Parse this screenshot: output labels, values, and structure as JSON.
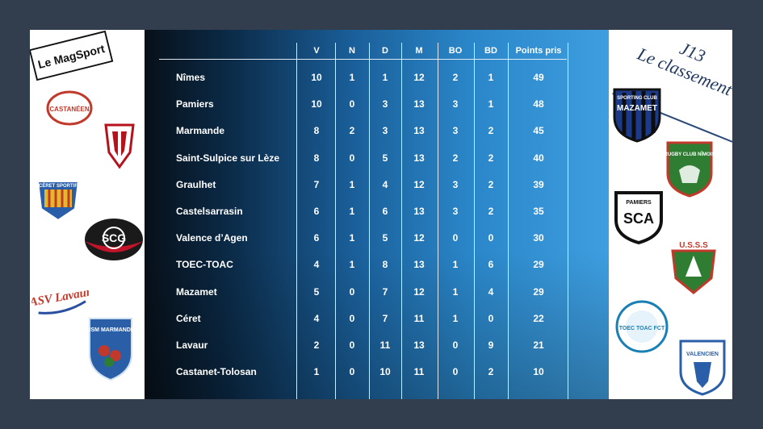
{
  "brand": {
    "logo_text": "Le MagSport"
  },
  "heading": {
    "line1": "J13",
    "line2": "Le classement"
  },
  "columns": [
    "V",
    "N",
    "D",
    "M",
    "BO",
    "BD",
    "Points pris"
  ],
  "rows": [
    {
      "team": "Nîmes",
      "V": "10",
      "N": "1",
      "D": "1",
      "M": "12",
      "BO": "2",
      "BD": "1",
      "P": "49"
    },
    {
      "team": "Pamiers",
      "V": "10",
      "N": "0",
      "D": "3",
      "M": "13",
      "BO": "3",
      "BD": "1",
      "P": "48"
    },
    {
      "team": "Marmande",
      "V": "8",
      "N": "2",
      "D": "3",
      "M": "13",
      "BO": "3",
      "BD": "2",
      "P": "45"
    },
    {
      "team": "Saint-Sulpice sur Lèze",
      "V": "8",
      "N": "0",
      "D": "5",
      "M": "13",
      "BO": "2",
      "BD": "2",
      "P": "40"
    },
    {
      "team": "Graulhet",
      "V": "7",
      "N": "1",
      "D": "4",
      "M": "12",
      "BO": "3",
      "BD": "2",
      "P": "39"
    },
    {
      "team": "Castelsarrasin",
      "V": "6",
      "N": "1",
      "D": "6",
      "M": "13",
      "BO": "3",
      "BD": "2",
      "P": "35"
    },
    {
      "team": "Valence d’Agen",
      "V": "6",
      "N": "1",
      "D": "5",
      "M": "12",
      "BO": "0",
      "BD": "0",
      "P": "30"
    },
    {
      "team": "TOEC-TOAC",
      "V": "4",
      "N": "1",
      "D": "8",
      "M": "13",
      "BO": "1",
      "BD": "6",
      "P": "29"
    },
    {
      "team": "Mazamet",
      "V": "5",
      "N": "0",
      "D": "7",
      "M": "12",
      "BO": "1",
      "BD": "4",
      "P": "29"
    },
    {
      "team": "Céret",
      "V": "4",
      "N": "0",
      "D": "7",
      "M": "11",
      "BO": "1",
      "BD": "0",
      "P": "22"
    },
    {
      "team": "Lavaur",
      "V": "2",
      "N": "0",
      "D": "11",
      "M": "13",
      "BO": "0",
      "BD": "9",
      "P": "21"
    },
    {
      "team": "Castanet-Tolosan",
      "V": "1",
      "N": "0",
      "D": "10",
      "M": "11",
      "BO": "0",
      "BD": "2",
      "P": "10"
    }
  ],
  "logos_left": {
    "castaneen": "CASTANÉEN",
    "ceret": "CÉRET SPORTIF",
    "scg": "SCG",
    "asv": "ASV Lavaur",
    "usm": "USM MARMANDE"
  },
  "logos_right": {
    "mazamet": "MAZAMET",
    "mazamet_arc": "SPORTING CLUB",
    "nimes": "RUGBY CLUB NÎMOIS",
    "sca": "SCA",
    "sca_top": "PAMIERS",
    "usss": "U.S.S.S",
    "toec": "TOEC TOAC FCT",
    "valence": "VALENCIEN"
  },
  "colors": {
    "panel_dark": "#071019",
    "panel_light": "#3e9ee0",
    "frame": "#323d4e",
    "accent_line": "#2c4a7a"
  }
}
